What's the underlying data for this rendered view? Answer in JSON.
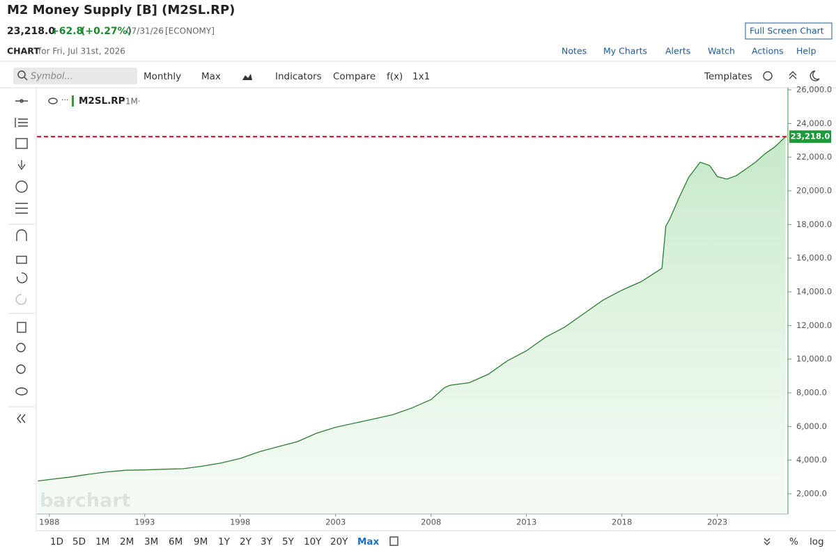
{
  "header": {
    "title": "M2 Money Supply [B] (M2SL.RP)",
    "price": "23,218.0",
    "change": "+62.8",
    "change_percent": "(+0.27%)",
    "date": "07/31/26",
    "category": "[ECONOMY]",
    "full_screen": "Full Screen Chart",
    "chart_label": "CHART",
    "chart_date": "for Fri, Jul 31st, 2026",
    "menu": [
      "Notes",
      "My Charts",
      "Alerts",
      "Watch",
      "Actions",
      "Help"
    ]
  },
  "toolbar": {
    "symbol_placeholder": "Symbol...",
    "items": [
      "Monthly",
      "Max",
      "Indicators",
      "Compare",
      "f(x)",
      "1x1"
    ],
    "templates": "Templates"
  },
  "chart_data": {
    "type": "area",
    "legend_period": "·1M·",
    "watermark": "barchart",
    "x": [
      1987.4,
      1988,
      1989,
      1990,
      1991,
      1992,
      1993,
      1994,
      1995,
      1996,
      1997,
      1998,
      1999,
      2000,
      2001,
      2002,
      2003,
      2004,
      2005,
      2006,
      2007,
      2008,
      2008.7,
      2009,
      2010,
      2011,
      2012,
      2013,
      2014,
      2015,
      2016,
      2017,
      2018,
      2019,
      2020.1,
      2020.3,
      2020.5,
      2021,
      2021.5,
      2022.1,
      2022.6,
      2023,
      2023.5,
      2024,
      2024.5,
      2025,
      2025.5,
      2026,
      2026.58
    ],
    "series": [
      {
        "name": "M2SL.RP",
        "color": "#2e7d32",
        "values": [
          2760,
          2850,
          2980,
          3150,
          3300,
          3400,
          3420,
          3460,
          3490,
          3640,
          3830,
          4100,
          4500,
          4800,
          5100,
          5600,
          5950,
          6200,
          6450,
          6700,
          7100,
          7600,
          8300,
          8450,
          8600,
          9100,
          9900,
          10500,
          11300,
          11900,
          12700,
          13500,
          14100,
          14600,
          15400,
          17900,
          18300,
          19600,
          20800,
          21700,
          21500,
          20850,
          20700,
          20900,
          21300,
          21700,
          22200,
          22600,
          23218
        ]
      }
    ],
    "xlim": [
      1987.35,
      2026.7
    ],
    "xticks": [
      1988,
      1993,
      1998,
      2003,
      2008,
      2013,
      2018,
      2023
    ],
    "ylim": [
      800,
      26124
    ],
    "yticks": [
      {
        "value": 2000,
        "label": "2,000.0"
      },
      {
        "value": 4000,
        "label": "4,000.0"
      },
      {
        "value": 6000,
        "label": "6,000.0"
      },
      {
        "value": 8000,
        "label": "8,000.0"
      },
      {
        "value": 10000,
        "label": "10,000.0"
      },
      {
        "value": 12000,
        "label": "12,000.0"
      },
      {
        "value": 14000,
        "label": "14,000.0"
      },
      {
        "value": 16000,
        "label": "16,000.0"
      },
      {
        "value": 18000,
        "label": "18,000.0"
      },
      {
        "value": 20000,
        "label": "20,000.0"
      },
      {
        "value": 22000,
        "label": "22,000.0"
      },
      {
        "value": 24000,
        "label": "24,000.0"
      },
      {
        "value": 26000,
        "label": "26,000.0"
      }
    ],
    "log_scale": false,
    "reference_line": {
      "value": 23218,
      "label": "23,218.0",
      "color": "#d0021b"
    }
  },
  "footer": {
    "periods": [
      "1D",
      "5D",
      "1M",
      "2M",
      "3M",
      "6M",
      "9M",
      "1Y",
      "2Y",
      "3Y",
      "5Y",
      "10Y",
      "20Y",
      "Max"
    ],
    "scale_options": [
      "%",
      "log"
    ]
  }
}
